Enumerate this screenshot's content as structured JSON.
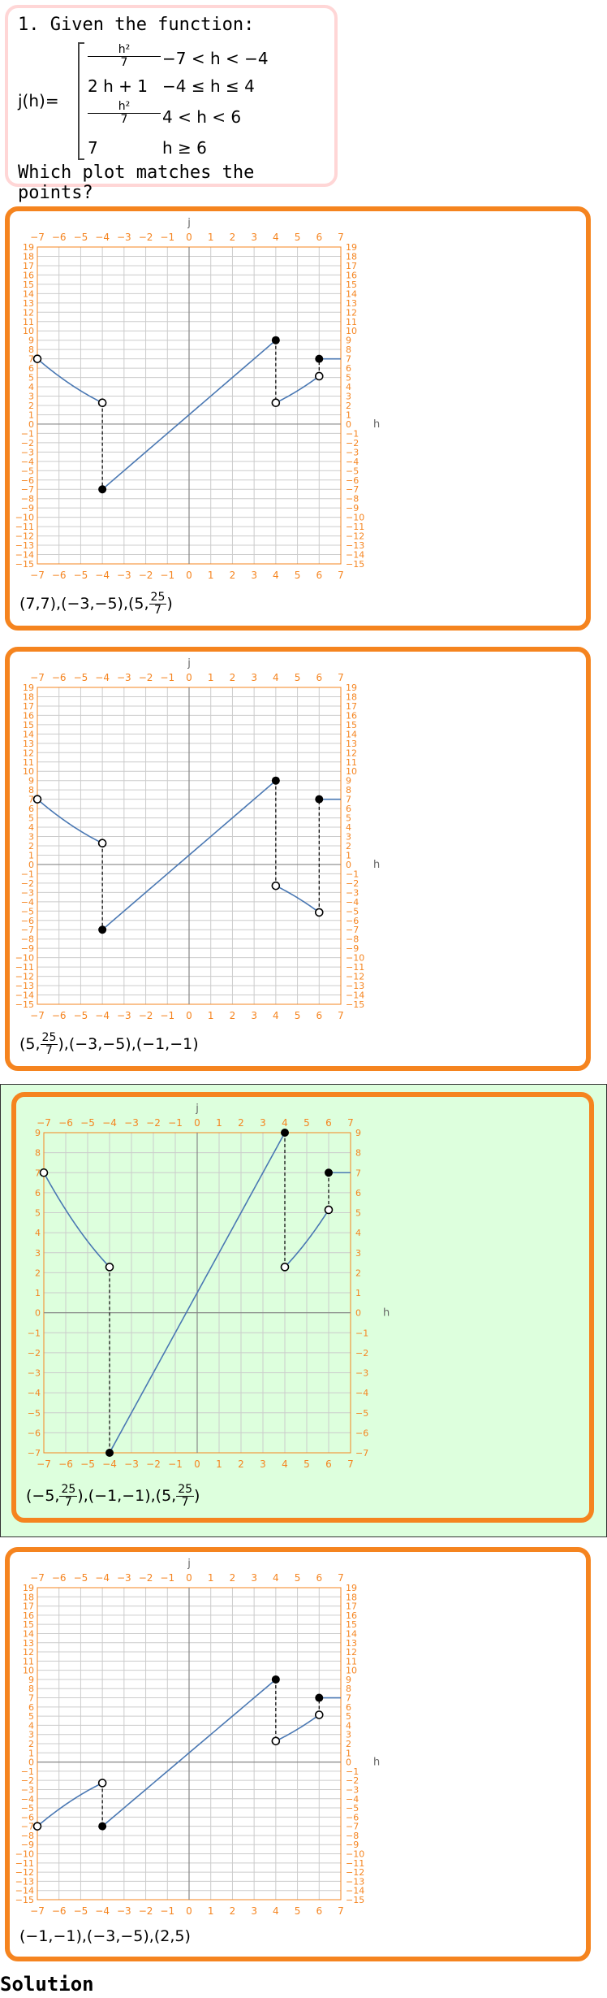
{
  "question": {
    "title": "1. Given the function:",
    "function_name": "j(h)=",
    "pieces": [
      {
        "expr_num": "h²",
        "expr_den": "7",
        "cond": "−7 < h < −4"
      },
      {
        "expr": "2 h + 1",
        "cond": "−4 ≤ h ≤ 4"
      },
      {
        "expr_num": "h²",
        "expr_den": "7",
        "cond": "4 < h < 6"
      },
      {
        "expr": "7",
        "cond": "h ≥ 6"
      }
    ],
    "prompt": "Which plot matches the points?"
  },
  "choices": [
    {
      "caption_parts": [
        "(7,7),(−3,−5),(5,",
        "25",
        "7",
        ")"
      ],
      "selected": false,
      "chart_data": {
        "type": "line",
        "xlabel": "h",
        "ylabel": "j",
        "xlim": [
          -7,
          7
        ],
        "ylim": [
          -15,
          19
        ],
        "xticks": [
          -7,
          -6,
          -5,
          -4,
          -3,
          -2,
          -1,
          0,
          1,
          2,
          3,
          4,
          5,
          6,
          7
        ],
        "yticks": [
          -15,
          -14,
          -13,
          -12,
          -11,
          -10,
          -9,
          -8,
          -7,
          -6,
          -5,
          -4,
          -3,
          -2,
          -1,
          0,
          1,
          2,
          3,
          4,
          5,
          6,
          7,
          8,
          9,
          10,
          11,
          12,
          13,
          14,
          15,
          16,
          17,
          18,
          19
        ],
        "segments": [
          {
            "fn": "sq7",
            "from": -7,
            "to": -4
          },
          {
            "fn": "lin",
            "from": -4,
            "to": 4
          },
          {
            "fn": "sq7",
            "from": 4,
            "to": 6
          },
          {
            "fn": "const7",
            "from": 6,
            "to": 7
          }
        ],
        "open_points": [
          [
            -7,
            7
          ],
          [
            -4,
            2.2857
          ],
          [
            4,
            2.2857
          ],
          [
            6,
            5.1429
          ]
        ],
        "closed_points": [
          [
            -4,
            -7
          ],
          [
            4,
            9
          ],
          [
            6,
            7
          ]
        ],
        "jumps": [
          [
            -4,
            2.2857,
            -7
          ],
          [
            4,
            9,
            2.2857
          ],
          [
            6,
            5.1429,
            7
          ]
        ]
      }
    },
    {
      "caption_parts": [
        "(5,",
        "25",
        "7",
        "),(−3,−5),(−1,−1)"
      ],
      "selected": false,
      "chart_data": {
        "type": "line",
        "xlabel": "h",
        "ylabel": "j",
        "xlim": [
          -7,
          7
        ],
        "ylim": [
          -15,
          19
        ],
        "xticks": [
          -7,
          -6,
          -5,
          -4,
          -3,
          -2,
          -1,
          0,
          1,
          2,
          3,
          4,
          5,
          6,
          7
        ],
        "yticks": [
          -15,
          -14,
          -13,
          -12,
          -11,
          -10,
          -9,
          -8,
          -7,
          -6,
          -5,
          -4,
          -3,
          -2,
          -1,
          0,
          1,
          2,
          3,
          4,
          5,
          6,
          7,
          8,
          9,
          10,
          11,
          12,
          13,
          14,
          15,
          16,
          17,
          18,
          19
        ],
        "segments": [
          {
            "fn": "sq7",
            "from": -7,
            "to": -4
          },
          {
            "fn": "lin",
            "from": -4,
            "to": 4
          },
          {
            "fn": "negsq7",
            "from": 4,
            "to": 6
          },
          {
            "fn": "const7",
            "from": 6,
            "to": 7
          }
        ],
        "open_points": [
          [
            -7,
            7
          ],
          [
            -4,
            2.2857
          ],
          [
            4,
            -2.2857
          ],
          [
            6,
            -5.1429
          ]
        ],
        "closed_points": [
          [
            -4,
            -7
          ],
          [
            4,
            9
          ],
          [
            6,
            7
          ]
        ],
        "jumps": [
          [
            -4,
            2.2857,
            -7
          ],
          [
            4,
            9,
            -2.2857
          ],
          [
            6,
            -5.1429,
            7
          ]
        ]
      }
    },
    {
      "caption_parts": [
        "(−5,",
        "25",
        "7",
        "),(−1,−1),(5,",
        "25",
        "7",
        ")"
      ],
      "selected": true,
      "chart_data": {
        "type": "line",
        "xlabel": "h",
        "ylabel": "j",
        "xlim": [
          -7,
          7
        ],
        "ylim": [
          -7,
          9
        ],
        "xticks": [
          -7,
          -6,
          -5,
          -4,
          -3,
          -2,
          -1,
          0,
          1,
          2,
          3,
          4,
          5,
          6,
          7
        ],
        "yticks": [
          -7,
          -6,
          -5,
          -4,
          -3,
          -2,
          -1,
          0,
          1,
          2,
          3,
          4,
          5,
          6,
          7,
          8,
          9
        ],
        "segments": [
          {
            "fn": "sq7",
            "from": -7,
            "to": -4
          },
          {
            "fn": "lin",
            "from": -4,
            "to": 4
          },
          {
            "fn": "sq7",
            "from": 4,
            "to": 6
          },
          {
            "fn": "const7",
            "from": 6,
            "to": 7
          }
        ],
        "open_points": [
          [
            -7,
            7
          ],
          [
            -4,
            2.2857
          ],
          [
            4,
            2.2857
          ],
          [
            6,
            5.1429
          ]
        ],
        "closed_points": [
          [
            -4,
            -7
          ],
          [
            4,
            9
          ],
          [
            6,
            7
          ]
        ],
        "jumps": [
          [
            -4,
            2.2857,
            -7
          ],
          [
            4,
            9,
            2.2857
          ],
          [
            6,
            5.1429,
            7
          ]
        ]
      }
    },
    {
      "caption_parts": [
        "(−1,−1),(−3,−5),(2,5)"
      ],
      "selected": false,
      "chart_data": {
        "type": "line",
        "xlabel": "h",
        "ylabel": "j",
        "xlim": [
          -7,
          7
        ],
        "ylim": [
          -15,
          19
        ],
        "xticks": [
          -7,
          -6,
          -5,
          -4,
          -3,
          -2,
          -1,
          0,
          1,
          2,
          3,
          4,
          5,
          6,
          7
        ],
        "yticks": [
          -15,
          -14,
          -13,
          -12,
          -11,
          -10,
          -9,
          -8,
          -7,
          -6,
          -5,
          -4,
          -3,
          -2,
          -1,
          0,
          1,
          2,
          3,
          4,
          5,
          6,
          7,
          8,
          9,
          10,
          11,
          12,
          13,
          14,
          15,
          16,
          17,
          18,
          19
        ],
        "segments": [
          {
            "fn": "negsq7",
            "from": -7,
            "to": -4
          },
          {
            "fn": "lin",
            "from": -4,
            "to": 4
          },
          {
            "fn": "sq7",
            "from": 4,
            "to": 6
          },
          {
            "fn": "const7",
            "from": 6,
            "to": 7
          }
        ],
        "open_points": [
          [
            -7,
            -7
          ],
          [
            -4,
            -2.2857
          ],
          [
            4,
            2.2857
          ],
          [
            6,
            5.1429
          ]
        ],
        "closed_points": [
          [
            -4,
            -7
          ],
          [
            4,
            9
          ],
          [
            6,
            7
          ]
        ],
        "jumps": [
          [
            -4,
            -2.2857,
            -7
          ],
          [
            4,
            9,
            2.2857
          ],
          [
            6,
            5.1429,
            7
          ]
        ]
      }
    }
  ],
  "solution_label": "Solution",
  "colors": {
    "accent": "#f5841f",
    "curve": "#4a78b3",
    "grid": "#cccccc",
    "axis": "#888888",
    "tick": "#f5841f",
    "correct_bg": "#ddffdd",
    "question_border": "#ffd6d6"
  }
}
